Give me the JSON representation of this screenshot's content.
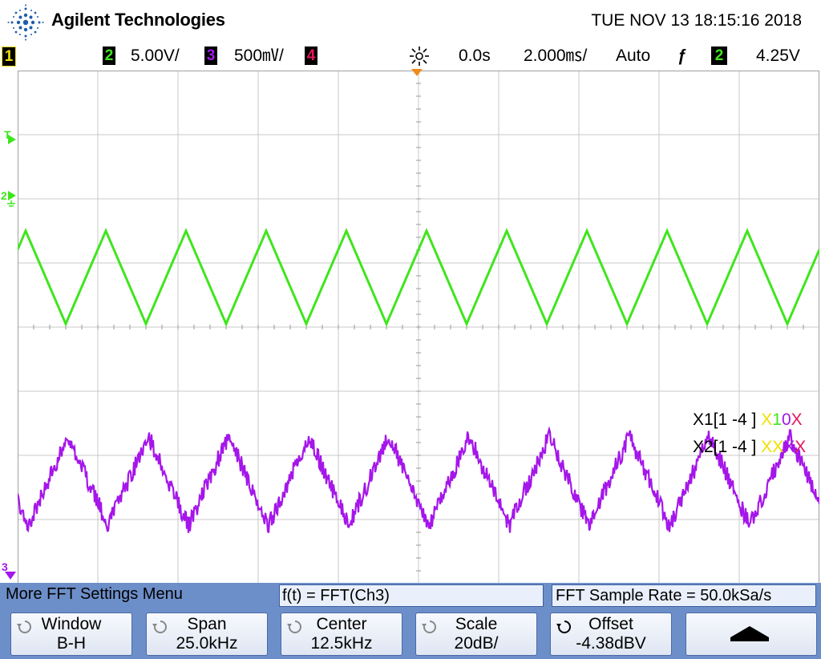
{
  "header": {
    "brand": "Agilent Technologies",
    "datetime": "TUE NOV 13 18:15:16 2018"
  },
  "status": {
    "ch1": "1",
    "ch2": "2",
    "ch2_scale": "5.00V/",
    "ch3": "3",
    "ch3_scale": "500㎷/",
    "ch4": "4",
    "time_delay": "0.0s",
    "time_scale": "2.000㎳/",
    "trigger_mode": "Auto",
    "trigger_slope": "ƒ",
    "trigger_source": "2",
    "trigger_level": "4.25V"
  },
  "markers": {
    "trigger": "T",
    "ch2_ground": "2",
    "ch3_ground": "3"
  },
  "bus_labels": {
    "x1_prefix": "X1[1 -4 ]",
    "x1_value": "X10X",
    "x2_prefix": "X2[1 -4 ]",
    "x2_value": "XXXX"
  },
  "colors": {
    "ch1": "#f0e000",
    "ch2": "#3fe51d",
    "ch3": "#a516ea",
    "ch4": "#e8145a",
    "grid": "#c8c8c8",
    "softbar": "#6d8fc9",
    "trigger_marker": "#f08a1a"
  },
  "softbar": {
    "menu_title": "More FFT Settings Menu",
    "function": "f(t) = FFT(Ch3)",
    "sample_rate": "FFT Sample Rate = 50.0kSa/s",
    "keys": [
      {
        "label": "Window",
        "value": "B-H"
      },
      {
        "label": "Span",
        "value": "25.0kHz"
      },
      {
        "label": "Center",
        "value": "12.5kHz"
      },
      {
        "label": "Scale",
        "value": "20dB/"
      },
      {
        "label": "Offset",
        "value": "-4.38dBV"
      }
    ],
    "up_icon": "up-arrow-icon"
  },
  "waveforms": {
    "ch2": {
      "shape": "triangle",
      "period_ms": 2.0,
      "high_div": 1.5,
      "low_div": 0.05
    },
    "ch3": {
      "shape": "noisy-triangle",
      "period_ms": 2.0,
      "high_div": -1.7,
      "low_div": -3.1
    }
  }
}
